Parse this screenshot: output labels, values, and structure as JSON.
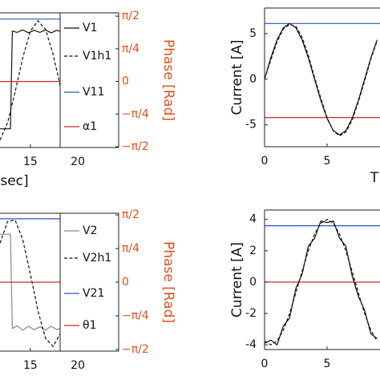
{
  "chart_data": [
    {
      "type": "line",
      "xlabel": "sec]",
      "y2label": "Phase [Rad]",
      "xlim": [
        11.8,
        24.3
      ],
      "xticks": [
        15,
        20
      ],
      "ylim": [
        -1.59,
        1.65
      ],
      "y2lim": [
        -1.59,
        1.65
      ],
      "y2ticks": [
        {
          "value": 1.571,
          "label": "π/2"
        },
        {
          "value": 0.785,
          "label": "π/4"
        },
        0,
        {
          "value": -0.785,
          "label": "−π/4"
        },
        {
          "value": -1.571,
          "label": "−π/2"
        }
      ],
      "series": [
        {
          "name": "V1",
          "color": "#111111",
          "dash": false,
          "x": [
            11.8,
            12.9,
            13.1,
            13.6,
            14.2,
            14.8,
            15.4,
            16,
            16.6,
            17.2,
            17.8,
            18.4,
            19.1,
            19.2,
            24.3
          ],
          "values": [
            -1.14,
            -1.14,
            1.21,
            1.18,
            1.24,
            1.17,
            1.23,
            1.18,
            1.24,
            1.17,
            1.23,
            1.19,
            1.21,
            -1.14,
            -1.14
          ]
        },
        {
          "name": "V1h1",
          "color": "#111111",
          "dash": true,
          "x": [
            11.8,
            12.6,
            13.4,
            14.2,
            15.0,
            15.8,
            16.6,
            17.4,
            18.2,
            19.0,
            19.8,
            20.6,
            21.4,
            22.2,
            23.0,
            23.8
          ],
          "values": [
            -1.41,
            -0.99,
            -0.25,
            0.57,
            1.21,
            1.46,
            1.25,
            0.65,
            -0.17,
            -0.93,
            -1.39,
            -1.41,
            -0.98,
            -0.25,
            0.57,
            1.21
          ]
        },
        {
          "name": "V11",
          "color": "#3050c8",
          "dash": false,
          "x": [
            11.8,
            24.3
          ],
          "values": [
            1.5,
            1.5
          ]
        },
        {
          "name": "α1",
          "color": "#d02828",
          "dash": false,
          "axis": "y2",
          "x": [
            11.8,
            24.3
          ],
          "values": [
            0,
            0
          ]
        }
      ]
    },
    {
      "type": "line",
      "xlabel": "T",
      "ylabel": "Current [A]",
      "xlim": [
        0,
        9.23
      ],
      "xticks": [
        0,
        5
      ],
      "ylim": [
        -7.4,
        7.8
      ],
      "yticks": [
        5,
        0,
        -5
      ],
      "series": [
        {
          "color": "#3050c8",
          "dash": false,
          "x": [
            0,
            9.23
          ],
          "values": [
            6.1,
            6.1
          ]
        },
        {
          "color": "#d02828",
          "dash": false,
          "x": [
            0,
            9.23
          ],
          "values": [
            -4.2,
            -4.2
          ]
        },
        {
          "color": "#111111",
          "dash": false,
          "x": [
            0,
            0.5,
            1,
            1.5,
            2,
            2.5,
            3,
            3.5,
            4,
            4.5,
            5,
            5.5,
            6,
            6.5,
            7,
            7.5,
            8,
            8.5,
            9
          ],
          "values": [
            0,
            2.34,
            4.31,
            5.64,
            6.1,
            5.64,
            4.31,
            2.34,
            0,
            -2.34,
            -4.31,
            -5.64,
            -6.1,
            -5.64,
            -4.31,
            -2.34,
            0,
            2.34,
            4.31
          ]
        },
        {
          "color": "#111111",
          "dash": true,
          "x": [
            0,
            0.5,
            1,
            1.5,
            2,
            2.5,
            3,
            3.5,
            4,
            4.5,
            5,
            5.5,
            6,
            6.5,
            7,
            7.5,
            8,
            8.5,
            9
          ],
          "values": [
            0,
            2.1,
            4.1,
            5.5,
            6.0,
            5.8,
            4.6,
            2.6,
            0.2,
            -2.1,
            -4.2,
            -5.7,
            -6.2,
            -5.8,
            -4.5,
            -2.5,
            -0.2,
            2.2,
            4.2
          ]
        }
      ]
    },
    {
      "type": "line",
      "y2label": "Phase [Rad]",
      "xlim": [
        11.8,
        24.3
      ],
      "xticks": [
        15,
        20
      ],
      "ylim": [
        -1.61,
        1.61
      ],
      "y2lim": [
        -1.61,
        1.61
      ],
      "y2ticks": [
        {
          "value": 1.571,
          "label": "π/2"
        },
        {
          "value": 0.785,
          "label": "π/4"
        },
        0,
        {
          "value": -0.785,
          "label": "−π/4"
        },
        {
          "value": -1.571,
          "label": "−π/2"
        }
      ],
      "series": [
        {
          "name": "V2",
          "color": "#888888",
          "dash": false,
          "x": [
            11.8,
            12.9,
            13.1,
            13.6,
            14.2,
            14.8,
            15.4,
            16,
            16.6,
            17.2,
            17.8,
            18.4,
            19.1,
            19.2,
            24.3
          ],
          "values": [
            1.12,
            1.12,
            -1.08,
            -1.02,
            -1.12,
            -1.03,
            -1.11,
            -1.04,
            -1.12,
            -1.03,
            -1.11,
            -1.05,
            -1.08,
            1.12,
            1.12
          ]
        },
        {
          "name": "V2h1",
          "color": "#111111",
          "dash": true,
          "x": [
            11.8,
            12.6,
            13.4,
            14.2,
            15.0,
            15.8,
            16.6,
            17.4,
            18.2,
            19.0,
            19.8,
            20.6,
            21.4,
            22.2,
            23.0,
            23.8
          ],
          "values": [
            0.91,
            1.42,
            1.45,
            0.99,
            0.19,
            -0.67,
            -1.31,
            -1.5,
            -1.18,
            -0.46,
            0.42,
            1.15,
            1.49,
            1.33,
            0.72,
            -0.14
          ]
        },
        {
          "name": "V21",
          "color": "#3050c8",
          "dash": false,
          "x": [
            11.8,
            24.3
          ],
          "values": [
            1.48,
            1.48
          ]
        },
        {
          "name": "θ1",
          "color": "#d02828",
          "dash": false,
          "axis": "y2",
          "x": [
            11.8,
            24.3
          ],
          "values": [
            0,
            0
          ]
        }
      ]
    },
    {
      "type": "line",
      "ylabel": "Current [A]",
      "xlim": [
        0,
        9.23
      ],
      "xticks": [
        0,
        5
      ],
      "ylim": [
        -4.3,
        4.6
      ],
      "yticks": [
        4,
        2,
        0,
        -2,
        -4
      ],
      "series": [
        {
          "color": "#3050c8",
          "dash": false,
          "x": [
            0,
            9.23
          ],
          "values": [
            3.6,
            3.6
          ]
        },
        {
          "color": "#d02828",
          "dash": false,
          "x": [
            0,
            9.23
          ],
          "values": [
            0,
            0
          ]
        },
        {
          "color": "#111111",
          "dash": false,
          "x": [
            0,
            0.5,
            1,
            1.5,
            2,
            2.5,
            3,
            3.5,
            4,
            4.5,
            5,
            5.5,
            6,
            6.5,
            7,
            7.5,
            8,
            8.5,
            9
          ],
          "values": [
            -3.9,
            -3.7,
            -4.0,
            -2.8,
            -2.3,
            -0.4,
            0.5,
            2.3,
            2.8,
            3.9,
            3.8,
            3.9,
            2.8,
            2.3,
            0.4,
            -0.9,
            -1.8,
            -3.3,
            -3.6
          ]
        },
        {
          "color": "#111111",
          "dash": true,
          "x": [
            0,
            0.5,
            1,
            1.5,
            2,
            2.5,
            3,
            3.5,
            4,
            4.5,
            5,
            5.5,
            6,
            6.5,
            7,
            7.5,
            8,
            8.5,
            9
          ],
          "values": [
            -3.76,
            -4,
            -3.76,
            -3.06,
            -2,
            -0.69,
            0.69,
            2,
            3.06,
            3.76,
            4,
            3.76,
            3.06,
            2,
            0.69,
            -0.69,
            -2,
            -3.06,
            -3.76
          ]
        }
      ]
    }
  ]
}
